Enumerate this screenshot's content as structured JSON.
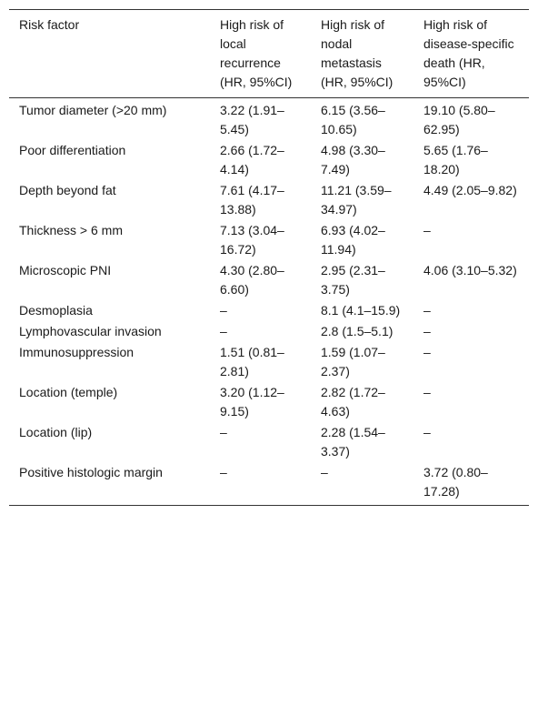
{
  "headers": {
    "col1": "Risk factor",
    "col2": "High risk of local recurrence (HR, 95%CI)",
    "col3": "High risk of nodal metastasis (HR, 95%CI)",
    "col4": "High risk of disease-specific death (HR, 95%CI)"
  },
  "rows": [
    {
      "factor": "Tumor diameter (>20 mm)",
      "local": "3.22 (1.91–5.45)",
      "nodal": "6.15 (3.56–10.65)",
      "death": "19.10 (5.80–62.95)"
    },
    {
      "factor": "Poor differentiation",
      "local": "2.66 (1.72–4.14)",
      "nodal": "4.98 (3.30–7.49)",
      "death": "5.65 (1.76–18.20)"
    },
    {
      "factor": "Depth beyond fat",
      "local": "7.61 (4.17–13.88)",
      "nodal": "11.21 (3.59–34.97)",
      "death": "4.49 (2.05–9.82)"
    },
    {
      "factor": "Thickness > 6 mm",
      "local": "7.13 (3.04–16.72)",
      "nodal": "6.93 (4.02–11.94)",
      "death": "–"
    },
    {
      "factor": "Microscopic PNI",
      "local": "4.30 (2.80–6.60)",
      "nodal": "2.95 (2.31–3.75)",
      "death": "4.06 (3.10–5.32)"
    },
    {
      "factor": "Desmoplasia",
      "local": "–",
      "nodal": "8.1 (4.1–15.9)",
      "death": "–"
    },
    {
      "factor": "Lymphovascular invasion",
      "local": "–",
      "nodal": "2.8 (1.5–5.1)",
      "death": "–"
    },
    {
      "factor": "Immunosuppression",
      "local": "1.51 (0.81–2.81)",
      "nodal": "1.59 (1.07–2.37)",
      "death": "–"
    },
    {
      "factor": "Location (temple)",
      "local": "3.20 (1.12–9.15)",
      "nodal": "2.82 (1.72–4.63)",
      "death": "–"
    },
    {
      "factor": "Location (lip)",
      "local": "–",
      "nodal": "2.28 (1.54–3.37)",
      "death": "–"
    },
    {
      "factor": "Positive histologic margin",
      "local": "–",
      "nodal": "–",
      "death": "3.72 (0.80–17.28)"
    }
  ]
}
